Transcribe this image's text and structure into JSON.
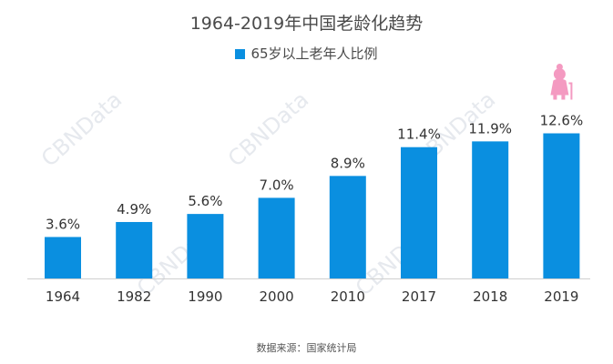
{
  "chart_data": {
    "type": "bar",
    "title": "1964-2019年中国老龄化趋势",
    "categories": [
      "1964",
      "1982",
      "1990",
      "2000",
      "2010",
      "2017",
      "2018",
      "2019"
    ],
    "series": [
      {
        "name": "65岁以上老年人比例",
        "values": [
          3.6,
          4.9,
          5.6,
          7.0,
          8.9,
          11.4,
          11.9,
          12.6
        ],
        "labels": [
          "3.6%",
          "4.9%",
          "5.6%",
          "7.0%",
          "8.9%",
          "11.4%",
          "11.9%",
          "12.6%"
        ],
        "color": "#0a8fe0"
      }
    ],
    "legend_position": "top",
    "grid": false,
    "ylim": [
      0,
      14.3
    ]
  },
  "source": "数据来源：国家统计局",
  "watermark": "CBNData",
  "elder_icon": {
    "icon": "elderly-person-icon",
    "color": "#f49ac1"
  }
}
